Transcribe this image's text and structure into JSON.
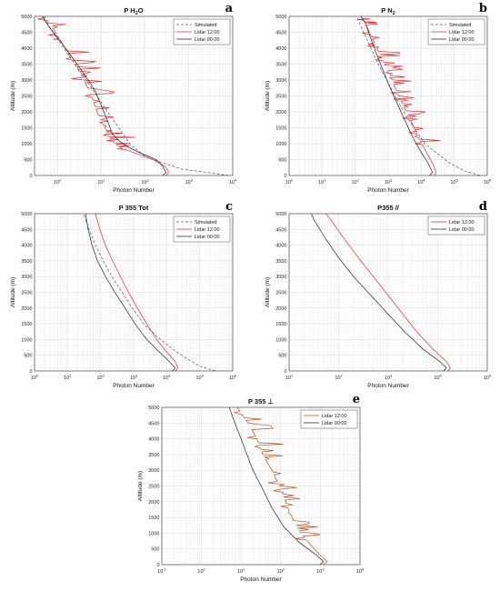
{
  "colors": {
    "simulated": "#555555",
    "lidar_12": "#e8292b",
    "lidar_12_alt": "#b5541c",
    "lidar_00": "#222222",
    "grid": "#e4e4e4"
  },
  "chart_data": [
    {
      "type": "line",
      "panel": "a",
      "title_main": "P H",
      "title_sub": "2",
      "title_end": "O",
      "xlabel": "Photon Number",
      "ylabel": "Altitude (m)",
      "x_scale": "log",
      "xlim": [
        0.3,
        10000
      ],
      "ylim": [
        0,
        5000
      ],
      "x_ticks": [
        {
          "base": "10",
          "exp": "0",
          "v": 1
        },
        {
          "base": "10",
          "exp": "1",
          "v": 10
        },
        {
          "base": "10",
          "exp": "2",
          "v": 100
        },
        {
          "base": "10",
          "exp": "3",
          "v": 1000
        },
        {
          "base": "10",
          "exp": "4",
          "v": 10000
        }
      ],
      "y_ticks": [
        "0",
        "500",
        "1000",
        "1500",
        "2000",
        "2500",
        "3000",
        "3500",
        "4000",
        "4500",
        "5000"
      ],
      "grid": true,
      "legend_position": "top-right",
      "series": [
        {
          "name": "Simulated",
          "style": "dashed",
          "points": [
            [
              8000,
              0
            ],
            [
              2500,
              100
            ],
            [
              700,
              200
            ],
            [
              250,
              400
            ],
            [
              100,
              600
            ],
            [
              45,
              1000
            ],
            [
              25,
              1500
            ],
            [
              14,
              2000
            ],
            [
              8,
              2500
            ],
            [
              4.5,
              3000
            ],
            [
              2.5,
              3500
            ],
            [
              1.4,
              4000
            ],
            [
              0.8,
              4500
            ],
            [
              0.45,
              5000
            ]
          ]
        },
        {
          "name": "Lidar 12:00",
          "style": "solid",
          "noise": true,
          "points": [
            [
              300,
              0
            ],
            [
              350,
              100
            ],
            [
              280,
              300
            ],
            [
              150,
              500
            ],
            [
              60,
              700
            ],
            [
              25,
              900
            ],
            [
              15,
              1200
            ],
            [
              12,
              1500
            ],
            [
              8,
              2000
            ],
            [
              6,
              2500
            ],
            [
              4,
              3000
            ],
            [
              2.5,
              3500
            ],
            [
              1.5,
              4000
            ],
            [
              0.9,
              4500
            ],
            [
              0.5,
              5000
            ]
          ]
        },
        {
          "name": "Lidar 00:00",
          "style": "solid",
          "points": [
            [
              250,
              0
            ],
            [
              300,
              100
            ],
            [
              250,
              300
            ],
            [
              180,
              500
            ],
            [
              80,
              700
            ],
            [
              40,
              900
            ],
            [
              25,
              1100
            ],
            [
              18,
              1300
            ],
            [
              14,
              1700
            ],
            [
              10,
              2200
            ],
            [
              7,
              2700
            ],
            [
              4,
              3200
            ],
            [
              2.2,
              3700
            ],
            [
              1.2,
              4200
            ],
            [
              0.7,
              4600
            ],
            [
              0.45,
              5000
            ]
          ]
        }
      ]
    },
    {
      "type": "line",
      "panel": "b",
      "title_main": "P N",
      "title_sub": "2",
      "title_end": "",
      "xlabel": "Photon Number",
      "ylabel": "Altitude (m)",
      "x_scale": "log",
      "xlim": [
        1,
        1000000
      ],
      "ylim": [
        0,
        5000
      ],
      "x_ticks": [
        {
          "base": "10",
          "exp": "0",
          "v": 1
        },
        {
          "base": "10",
          "exp": "1",
          "v": 10
        },
        {
          "base": "10",
          "exp": "2",
          "v": 100
        },
        {
          "base": "10",
          "exp": "3",
          "v": 1000
        },
        {
          "base": "10",
          "exp": "4",
          "v": 10000
        },
        {
          "base": "10",
          "exp": "5",
          "v": 100000
        },
        {
          "base": "10",
          "exp": "6",
          "v": 1000000
        }
      ],
      "y_ticks": [
        "0",
        "500",
        "1000",
        "1500",
        "2000",
        "2500",
        "3000",
        "3500",
        "4000",
        "4500",
        "5000"
      ],
      "grid": true,
      "legend_position": "top-right",
      "series": [
        {
          "name": "Simulated",
          "style": "dashed",
          "points": [
            [
              600000,
              0
            ],
            [
              200000,
              150
            ],
            [
              70000,
              400
            ],
            [
              30000,
              700
            ],
            [
              13000,
              1000
            ],
            [
              6000,
              1500
            ],
            [
              3000,
              2000
            ],
            [
              1600,
              2500
            ],
            [
              900,
              3000
            ],
            [
              500,
              3500
            ],
            [
              300,
              4000
            ],
            [
              180,
              4500
            ],
            [
              110,
              5000
            ]
          ]
        },
        {
          "name": "Lidar 12:00",
          "style": "solid",
          "noise": true,
          "points": [
            [
              25000,
              0
            ],
            [
              28000,
              100
            ],
            [
              24000,
              300
            ],
            [
              15000,
              700
            ],
            [
              9000,
              1100
            ],
            [
              5500,
              1600
            ],
            [
              3500,
              2000
            ],
            [
              2300,
              2400
            ],
            [
              1600,
              2800
            ],
            [
              1100,
              3200
            ],
            [
              700,
              3600
            ],
            [
              450,
              4000
            ],
            [
              300,
              4400
            ],
            [
              200,
              4800
            ],
            [
              150,
              5000
            ]
          ]
        },
        {
          "name": "Lidar 00:00",
          "style": "solid",
          "points": [
            [
              18000,
              0
            ],
            [
              22000,
              100
            ],
            [
              16000,
              400
            ],
            [
              9000,
              800
            ],
            [
              5000,
              1300
            ],
            [
              3000,
              1800
            ],
            [
              1800,
              2300
            ],
            [
              1100,
              2800
            ],
            [
              700,
              3300
            ],
            [
              450,
              3800
            ],
            [
              300,
              4300
            ],
            [
              200,
              4800
            ],
            [
              150,
              5000
            ]
          ]
        }
      ]
    },
    {
      "type": "line",
      "panel": "c",
      "title_main": "P 355 Tot",
      "title_sub": "",
      "title_end": "",
      "xlabel": "Photon Number",
      "ylabel": "Altitude (m)",
      "x_scale": "log",
      "xlim": [
        1,
        1000000
      ],
      "ylim": [
        0,
        5000
      ],
      "x_ticks": [
        {
          "base": "10",
          "exp": "0",
          "v": 1
        },
        {
          "base": "10",
          "exp": "1",
          "v": 10
        },
        {
          "base": "10",
          "exp": "2",
          "v": 100
        },
        {
          "base": "10",
          "exp": "3",
          "v": 1000
        },
        {
          "base": "10",
          "exp": "4",
          "v": 10000
        },
        {
          "base": "10",
          "exp": "5",
          "v": 100000
        },
        {
          "base": "10",
          "exp": "6",
          "v": 1000000
        }
      ],
      "y_ticks": [
        "0",
        "500",
        "1000",
        "1500",
        "2000",
        "2500",
        "3000",
        "3500",
        "4000",
        "4500",
        "5000"
      ],
      "grid": true,
      "legend_position": "top-right",
      "series": [
        {
          "name": "Simulated",
          "style": "dashed",
          "points": [
            [
              300000,
              0
            ],
            [
              100000,
              150
            ],
            [
              40000,
              400
            ],
            [
              15000,
              700
            ],
            [
              5000,
              1100
            ],
            [
              2000,
              1500
            ],
            [
              900,
              2000
            ],
            [
              450,
              2500
            ],
            [
              220,
              3000
            ],
            [
              120,
              3500
            ],
            [
              70,
              4000
            ],
            [
              45,
              4500
            ],
            [
              30,
              5000
            ]
          ]
        },
        {
          "name": "Lidar 12:00",
          "style": "solid",
          "points": [
            [
              18000,
              0
            ],
            [
              22000,
              100
            ],
            [
              18000,
              300
            ],
            [
              10000,
              600
            ],
            [
              5000,
              1000
            ],
            [
              2500,
              1500
            ],
            [
              1300,
              2000
            ],
            [
              700,
              2500
            ],
            [
              400,
              3000
            ],
            [
              230,
              3500
            ],
            [
              140,
              4000
            ],
            [
              95,
              4500
            ],
            [
              70,
              5000
            ]
          ]
        },
        {
          "name": "Lidar 00:00",
          "style": "solid",
          "points": [
            [
              15000,
              0
            ],
            [
              18000,
              100
            ],
            [
              12000,
              300
            ],
            [
              6000,
              600
            ],
            [
              2500,
              1000
            ],
            [
              1100,
              1500
            ],
            [
              550,
              2000
            ],
            [
              270,
              2500
            ],
            [
              140,
              3000
            ],
            [
              80,
              3500
            ],
            [
              55,
              4000
            ],
            [
              42,
              4500
            ],
            [
              35,
              5000
            ]
          ]
        }
      ]
    },
    {
      "type": "line",
      "panel": "d",
      "title_main": "P355 //",
      "title_sub": "",
      "title_end": "",
      "xlabel": "Photon Number",
      "ylabel": "Altitude (m)",
      "x_scale": "log",
      "xlim": [
        10,
        100000
      ],
      "ylim": [
        0,
        5000
      ],
      "x_ticks": [
        {
          "base": "10",
          "exp": "1",
          "v": 10
        },
        {
          "base": "10",
          "exp": "2",
          "v": 100
        },
        {
          "base": "10",
          "exp": "3",
          "v": 1000
        },
        {
          "base": "10",
          "exp": "4",
          "v": 10000
        },
        {
          "base": "10",
          "exp": "5",
          "v": 100000
        }
      ],
      "y_ticks": [
        "0",
        "500",
        "1000",
        "1500",
        "2000",
        "2500",
        "3000",
        "3500",
        "4000",
        "4500",
        "5000"
      ],
      "grid": true,
      "legend_position": "top-right",
      "series": [
        {
          "name": "Lidar 12:00",
          "style": "solid",
          "points": [
            [
              16000,
              0
            ],
            [
              18000,
              100
            ],
            [
              15000,
              300
            ],
            [
              8000,
              700
            ],
            [
              4000,
              1200
            ],
            [
              2000,
              1800
            ],
            [
              1000,
              2400
            ],
            [
              500,
              3000
            ],
            [
              250,
              3600
            ],
            [
              130,
              4200
            ],
            [
              70,
              4800
            ],
            [
              55,
              5000
            ]
          ]
        },
        {
          "name": "Lidar 00:00",
          "style": "solid",
          "points": [
            [
              13000,
              0
            ],
            [
              15000,
              100
            ],
            [
              11000,
              300
            ],
            [
              5000,
              700
            ],
            [
              2300,
              1200
            ],
            [
              1000,
              1800
            ],
            [
              450,
              2400
            ],
            [
              200,
              3000
            ],
            [
              100,
              3600
            ],
            [
              55,
              4200
            ],
            [
              32,
              4800
            ],
            [
              28,
              5000
            ]
          ]
        }
      ]
    },
    {
      "type": "line",
      "panel": "e",
      "title_main": "P 355 ⊥",
      "title_sub": "",
      "title_end": "",
      "xlabel": "Photon Number",
      "ylabel": "Altitude (m)",
      "x_scale": "log",
      "xlim": [
        0.1,
        10000
      ],
      "ylim": [
        0,
        5000
      ],
      "x_ticks": [
        {
          "base": "10",
          "exp": "-1",
          "v": 0.1
        },
        {
          "base": "10",
          "exp": "0",
          "v": 1
        },
        {
          "base": "10",
          "exp": "1",
          "v": 10
        },
        {
          "base": "10",
          "exp": "2",
          "v": 100
        },
        {
          "base": "10",
          "exp": "3",
          "v": 1000
        },
        {
          "base": "10",
          "exp": "4",
          "v": 10000
        }
      ],
      "y_ticks": [
        "0",
        "500",
        "1000",
        "1500",
        "2000",
        "2500",
        "3000",
        "3500",
        "4000",
        "4500",
        "5000"
      ],
      "grid": true,
      "legend_position": "top-right",
      "series": [
        {
          "name": "Lidar 12:00",
          "style": "solid",
          "noise": true,
          "alt_color": true,
          "points": [
            [
              1200,
              0
            ],
            [
              1500,
              100
            ],
            [
              1000,
              300
            ],
            [
              500,
              700
            ],
            [
              250,
              1200
            ],
            [
              150,
              1800
            ],
            [
              100,
              2400
            ],
            [
              60,
              3000
            ],
            [
              35,
              3500
            ],
            [
              25,
              4000
            ],
            [
              15,
              4500
            ],
            [
              8,
              5000
            ]
          ]
        },
        {
          "name": "Lidar 00:00",
          "style": "solid",
          "points": [
            [
              1000,
              0
            ],
            [
              1200,
              100
            ],
            [
              800,
              300
            ],
            [
              300,
              700
            ],
            [
              120,
              1200
            ],
            [
              60,
              1800
            ],
            [
              35,
              2400
            ],
            [
              20,
              3000
            ],
            [
              14,
              3500
            ],
            [
              10,
              4000
            ],
            [
              7,
              4500
            ],
            [
              5,
              5000
            ]
          ]
        }
      ]
    }
  ]
}
